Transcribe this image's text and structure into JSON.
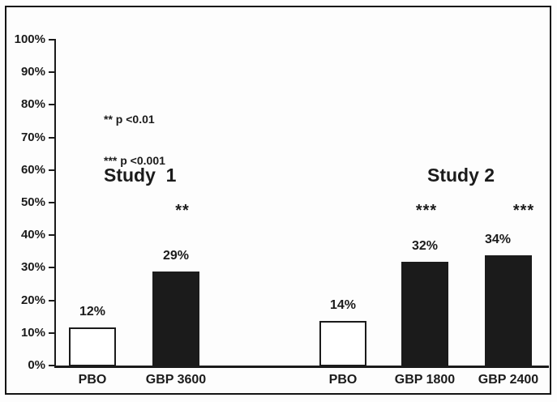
{
  "chart_data": {
    "type": "bar",
    "title": "",
    "xlabel": "",
    "ylabel": "",
    "ylim": [
      0,
      100
    ],
    "grid": false,
    "legend_position": "upper-left-inside",
    "y_axis": {
      "min": 0,
      "max": 100,
      "step": 10,
      "tick_labels": [
        "100%",
        "90%",
        "80%",
        "70%",
        "60%",
        "50%",
        "40%",
        "30%",
        "20%",
        "10%",
        "0%"
      ]
    },
    "annotations": [
      "** p <0.01",
      "*** p <0.001"
    ],
    "groups": [
      {
        "label": "Study  1",
        "bars": [
          {
            "category": "PBO",
            "value": 12,
            "value_label": "12%",
            "fill": "open",
            "significance": ""
          },
          {
            "category": "GBP 3600",
            "value": 29,
            "value_label": "29%",
            "fill": "solid",
            "significance": "**"
          }
        ]
      },
      {
        "label": "Study 2",
        "bars": [
          {
            "category": "PBO",
            "value": 14,
            "value_label": "14%",
            "fill": "open",
            "significance": ""
          },
          {
            "category": "GBP 1800",
            "value": 32,
            "value_label": "32%",
            "fill": "solid",
            "significance": "***"
          },
          {
            "category": "GBP 2400",
            "value": 34,
            "value_label": "34%",
            "fill": "solid",
            "significance": "***"
          }
        ]
      }
    ],
    "colors": {
      "bar_solid": "#1b1b1b",
      "bar_open_fill": "#ffffff",
      "axis": "#1b1b1b",
      "text": "#1b1b1b",
      "background": "#fdfdfd"
    }
  }
}
